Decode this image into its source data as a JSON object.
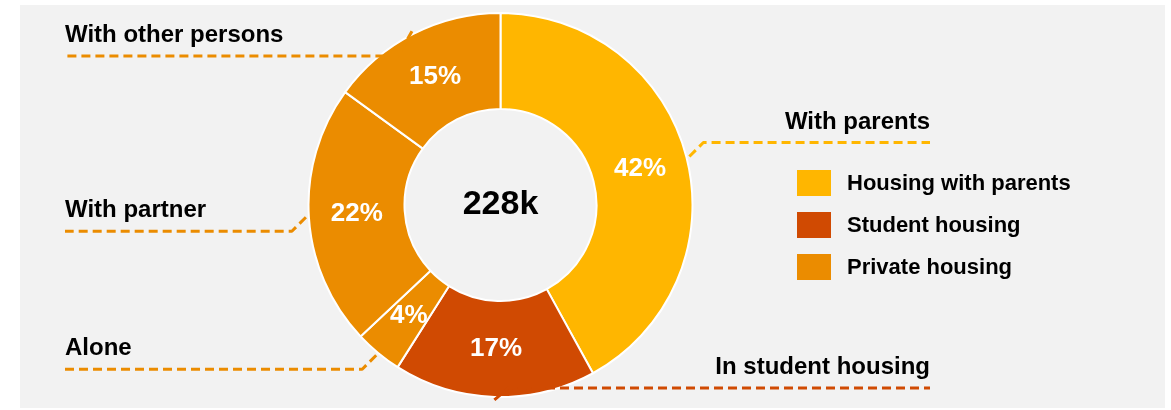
{
  "chart_data": {
    "type": "donut",
    "categories": [
      "With parents",
      "In student housing",
      "Alone",
      "With partner",
      "With other persons"
    ],
    "values": [
      42,
      17,
      4,
      22,
      15
    ],
    "colors": [
      "#ffb600",
      "#d04a02",
      "#eb8c00",
      "#eb8c00",
      "#eb8c00"
    ],
    "value_labels": [
      "42%",
      "17%",
      "4%",
      "22%",
      "15%"
    ],
    "annotations": [
      "228k",
      "Housing with parents",
      "Student housing",
      "Private housing"
    ]
  }
}
